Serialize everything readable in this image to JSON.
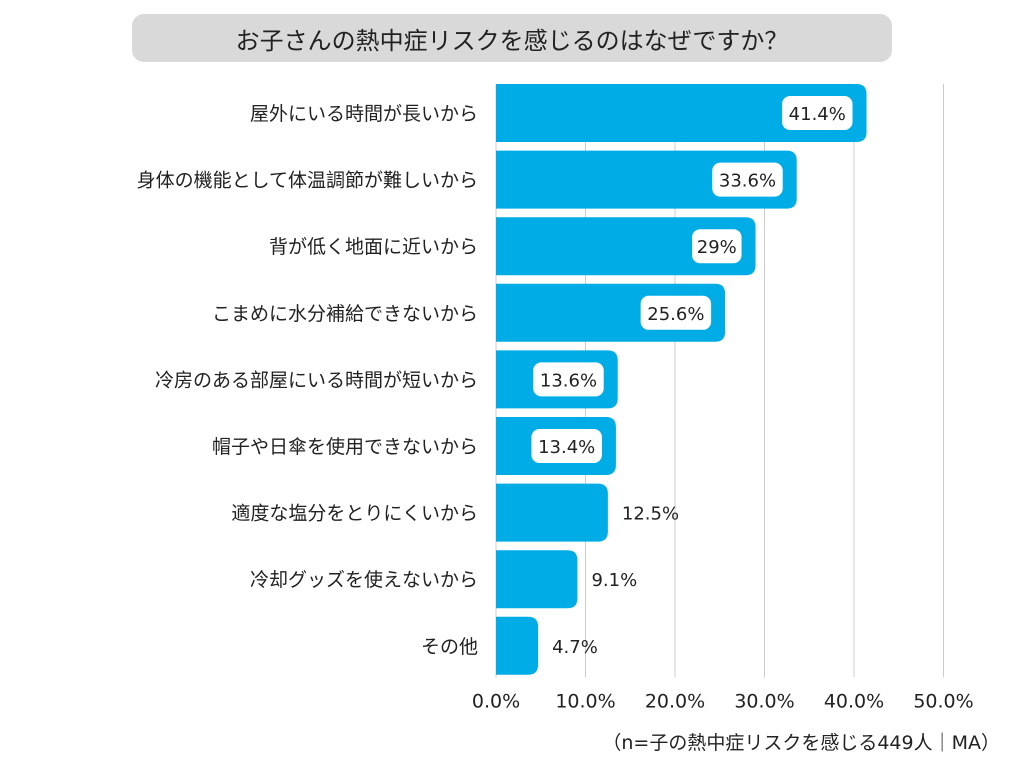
{
  "chart_data": {
    "type": "bar",
    "orientation": "horizontal",
    "title": "お子さんの熱中症リスクを感じるのはなぜですか？",
    "categories": [
      "屋外にいる時間が長いから",
      "身体の機能として体温調節が難しいから",
      "背が低く地面に近いから",
      "こまめに水分補給できないから",
      "冷房のある部屋にいる時間が短いから",
      "帽子や日傘を使用できないから",
      "適度な塩分をとりにくいから",
      "冷却グッズを使えないから",
      "その他"
    ],
    "values": [
      41.4,
      33.6,
      29,
      25.6,
      13.6,
      13.4,
      12.5,
      9.1,
      4.7
    ],
    "value_labels": [
      "41.4%",
      "33.6%",
      "29%",
      "25.6%",
      "13.6%",
      "13.4%",
      "12.5%",
      "9.1%",
      "4.7%"
    ],
    "xlim": [
      0,
      50
    ],
    "xticks": [
      0,
      10,
      20,
      30,
      40,
      50
    ],
    "xtick_labels": [
      "0.0%",
      "10.0%",
      "20.0%",
      "30.0%",
      "40.0%",
      "50.0%"
    ],
    "grid": true,
    "colors": {
      "bar": "#00ace6",
      "grid": "#cccccc",
      "title_bg": "#d9d9d9"
    },
    "footnote": "（n=子の熱中症リスクを感じる449人｜MA）"
  }
}
